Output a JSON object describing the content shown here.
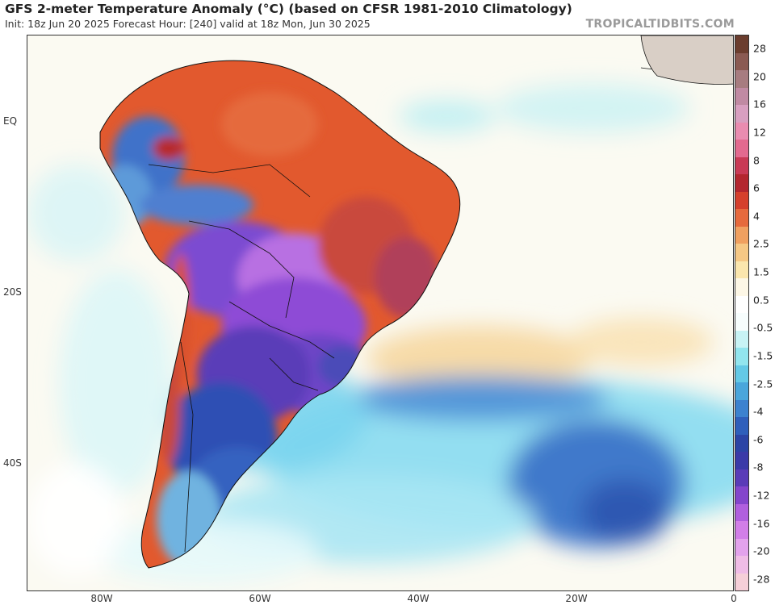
{
  "header": {
    "title": "GFS 2-meter Temperature Anomaly (°C) (based on CFSR 1981-2010 Climatology)",
    "subtitle": "Init: 18z Jun 20 2025   Forecast Hour: [240]   valid at 18z Mon, Jun 30 2025",
    "brand": "TROPICALTIDBITS.COM"
  },
  "axes": {
    "lat_labels": [
      "EQ",
      "20S",
      "40S"
    ],
    "lon_labels": [
      "80W",
      "60W",
      "40W",
      "20W",
      "0"
    ]
  },
  "colorbar": {
    "labels": [
      "28",
      "20",
      "16",
      "12",
      "8",
      "6",
      "4",
      "2.5",
      "1.5",
      "0.5",
      "-0.5",
      "-1.5",
      "-2.5",
      "-4",
      "-6",
      "-8",
      "-12",
      "-16",
      "-20",
      "-28"
    ],
    "colors": [
      "#6b3d2e",
      "#8a5a52",
      "#a77c80",
      "#c08aa3",
      "#d89fc0",
      "#ea8cb0",
      "#e36a8f",
      "#c93a55",
      "#b3262e",
      "#d5402c",
      "#e66a3d",
      "#f0a060",
      "#f6c885",
      "#fbe6ad",
      "#fdf7e6",
      "#ffffff",
      "#f7fdfd",
      "#c8f3f5",
      "#92e5ee",
      "#64c9e6",
      "#4aa6db",
      "#3c82cf",
      "#2f5fbb",
      "#2c44a5",
      "#3b3aa8",
      "#5a3bb8",
      "#8445cc",
      "#b05fde",
      "#d27ee8",
      "#e3a2ec",
      "#f0bce6",
      "#f6cfd8"
    ]
  },
  "legend": {
    "colors": {
      "ocean_neutral": "#fbfaf2",
      "warm_anomaly": "#e2592e",
      "cold_anomaly": "#2f4fb4",
      "very_cold": "#8e4bd6",
      "cool_ocean": "#6ecfee",
      "warm_ocean": "#f7d69b"
    }
  }
}
